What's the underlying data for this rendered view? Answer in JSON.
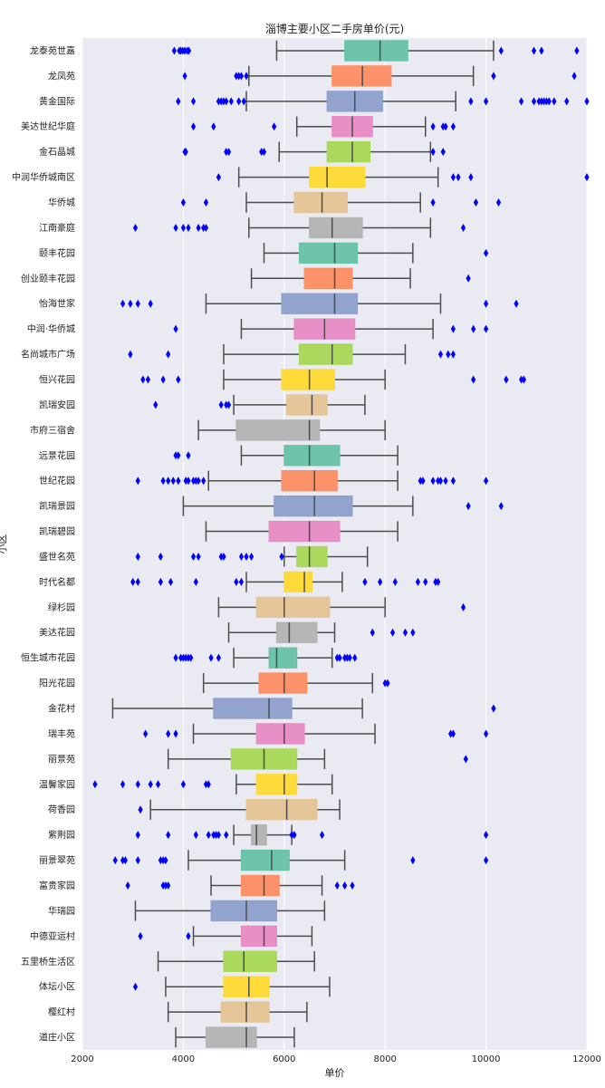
{
  "chart_data": {
    "type": "boxplot",
    "orientation": "horizontal",
    "title": "淄博主要小区二手房单价(元)",
    "xlabel": "单价",
    "ylabel": "小区",
    "xlim": [
      2000,
      12000
    ],
    "xticks": [
      2000,
      4000,
      6000,
      8000,
      10000,
      12000
    ],
    "grid": true,
    "categories": [
      {
        "name": "龙泰苑世嘉",
        "whisker_low": 5850,
        "q1": 7200,
        "median": 7900,
        "q3": 8450,
        "whisker_high": 10150,
        "outliers": [
          3820,
          3920,
          3950,
          3990,
          4030,
          4080,
          4110,
          10300,
          10950,
          11100,
          11800
        ]
      },
      {
        "name": "龙凤苑",
        "whisker_low": 5300,
        "q1": 6950,
        "median": 7550,
        "q3": 8120,
        "whisker_high": 9750,
        "outliers": [
          4030,
          5050,
          5100,
          5150,
          5250,
          10150,
          11750
        ]
      },
      {
        "name": "黄金国际",
        "whisker_low": 5250,
        "q1": 6850,
        "median": 7400,
        "q3": 7950,
        "whisker_high": 9400,
        "outliers": [
          3900,
          4200,
          4700,
          4750,
          4800,
          4850,
          4950,
          5100,
          5200,
          9700,
          10000,
          10700,
          10950,
          11050,
          11100,
          11150,
          11200,
          11250,
          11350,
          11600,
          12000
        ]
      },
      {
        "name": "美达世纪华庭",
        "whisker_low": 6250,
        "q1": 6950,
        "median": 7350,
        "q3": 7750,
        "whisker_high": 8800,
        "outliers": [
          4200,
          4600,
          5800,
          8950,
          9150,
          9200,
          9350
        ]
      },
      {
        "name": "金石晶城",
        "whisker_low": 5900,
        "q1": 6850,
        "median": 7350,
        "q3": 7700,
        "whisker_high": 8900,
        "outliers": [
          4030,
          4050,
          4850,
          4900,
          5550,
          5600,
          8950,
          9150
        ]
      },
      {
        "name": "中润华侨城南区",
        "whisker_low": 5100,
        "q1": 6500,
        "median": 6850,
        "q3": 7600,
        "whisker_high": 9050,
        "outliers": [
          4700,
          9350,
          9450,
          9700,
          12000
        ]
      },
      {
        "name": "华侨城",
        "whisker_low": 5250,
        "q1": 6200,
        "median": 6750,
        "q3": 7250,
        "whisker_high": 8700,
        "outliers": [
          4000,
          4450,
          8950,
          9800,
          10250
        ]
      },
      {
        "name": "江南豪庭",
        "whisker_low": 5300,
        "q1": 6500,
        "median": 6950,
        "q3": 7550,
        "whisker_high": 8900,
        "outliers": [
          3050,
          3850,
          4000,
          4100,
          4300,
          4400,
          4450,
          9550
        ]
      },
      {
        "name": "颐丰花园",
        "whisker_low": 5600,
        "q1": 6300,
        "median": 7000,
        "q3": 7450,
        "whisker_high": 8550,
        "outliers": [
          10000
        ]
      },
      {
        "name": "创业颐丰花园",
        "whisker_low": 5350,
        "q1": 6400,
        "median": 7000,
        "q3": 7350,
        "whisker_high": 8500,
        "outliers": [
          9650
        ]
      },
      {
        "name": "怡海世家",
        "whisker_low": 4450,
        "q1": 5950,
        "median": 7000,
        "q3": 7450,
        "whisker_high": 9100,
        "outliers": [
          2800,
          2950,
          3100,
          3350,
          10000,
          10600
        ]
      },
      {
        "name": "中润·华侨城",
        "whisker_low": 5150,
        "q1": 6200,
        "median": 6800,
        "q3": 7400,
        "whisker_high": 8950,
        "outliers": [
          3850,
          9350,
          9750,
          10000
        ]
      },
      {
        "name": "名尚城市广场",
        "whisker_low": 4800,
        "q1": 6300,
        "median": 6950,
        "q3": 7350,
        "whisker_high": 8400,
        "outliers": [
          2950,
          3700,
          9100,
          9250,
          9350
        ]
      },
      {
        "name": "恒兴花园",
        "whisker_low": 4800,
        "q1": 5950,
        "median": 6500,
        "q3": 7000,
        "whisker_high": 8000,
        "outliers": [
          3200,
          3300,
          3600,
          3900,
          9750,
          10400,
          10700,
          10750
        ]
      },
      {
        "name": "凯瑞安园",
        "whisker_low": 5000,
        "q1": 6050,
        "median": 6550,
        "q3": 6850,
        "whisker_high": 7600,
        "outliers": [
          3450,
          4750,
          4850,
          4900
        ]
      },
      {
        "name": "市府三宿舍",
        "whisker_low": 4300,
        "q1": 5050,
        "median": 6500,
        "q3": 6700,
        "whisker_high": 8000,
        "outliers": []
      },
      {
        "name": "远景花园",
        "whisker_low": 5150,
        "q1": 6000,
        "median": 6500,
        "q3": 7100,
        "whisker_high": 8250,
        "outliers": [
          3850,
          3900,
          4100
        ]
      },
      {
        "name": "世纪花园",
        "whisker_low": 4500,
        "q1": 5950,
        "median": 6600,
        "q3": 7050,
        "whisker_high": 8250,
        "outliers": [
          3100,
          3600,
          3700,
          3800,
          3900,
          4050,
          4100,
          4200,
          4250,
          4300,
          4400,
          8700,
          8750,
          8950,
          9050,
          9100,
          9200,
          9350,
          10000
        ]
      },
      {
        "name": "凯瑞景园",
        "whisker_low": 4000,
        "q1": 5800,
        "median": 6600,
        "q3": 7350,
        "whisker_high": 8550,
        "outliers": [
          9650,
          10300
        ]
      },
      {
        "name": "凯瑞碧园",
        "whisker_low": 4450,
        "q1": 5700,
        "median": 6500,
        "q3": 7100,
        "whisker_high": 8250,
        "outliers": []
      },
      {
        "name": "盛世名苑",
        "whisker_low": 6000,
        "q1": 6250,
        "median": 6500,
        "q3": 6850,
        "whisker_high": 7650,
        "outliers": [
          3100,
          3550,
          4200,
          4300,
          4750,
          4800,
          5150,
          5250,
          5350,
          5950
        ]
      },
      {
        "name": "时代名都",
        "whisker_low": 5250,
        "q1": 6000,
        "median": 6400,
        "q3": 6550,
        "whisker_high": 7150,
        "outliers": [
          3000,
          3100,
          3550,
          3750,
          4250,
          5050,
          5150,
          7600,
          7900,
          8200,
          8650,
          8800,
          9000,
          9050
        ]
      },
      {
        "name": "绿杉园",
        "whisker_low": 4700,
        "q1": 5450,
        "median": 6000,
        "q3": 6900,
        "whisker_high": 8000,
        "outliers": [
          9550
        ]
      },
      {
        "name": "美达花园",
        "whisker_low": 4900,
        "q1": 5850,
        "median": 6100,
        "q3": 6650,
        "whisker_high": 7000,
        "outliers": [
          7750,
          8150,
          8400,
          8550
        ]
      },
      {
        "name": "恒生城市花园",
        "whisker_low": 5000,
        "q1": 5700,
        "median": 5850,
        "q3": 6250,
        "whisker_high": 6950,
        "outliers": [
          3850,
          3950,
          4000,
          4050,
          4100,
          4150,
          4550,
          4700,
          7050,
          7100,
          7200,
          7250,
          7300,
          7400
        ]
      },
      {
        "name": "阳光花园",
        "whisker_low": 4400,
        "q1": 5500,
        "median": 6000,
        "q3": 6450,
        "whisker_high": 7750,
        "outliers": [
          8000,
          8050
        ]
      },
      {
        "name": "金花村",
        "whisker_low": 2600,
        "q1": 4600,
        "median": 5700,
        "q3": 6150,
        "whisker_high": 7550,
        "outliers": [
          10150
        ]
      },
      {
        "name": "瑞丰苑",
        "whisker_low": 4200,
        "q1": 5450,
        "median": 6000,
        "q3": 6400,
        "whisker_high": 7800,
        "outliers": [
          3250,
          3700,
          3850,
          9300,
          9350,
          10000
        ]
      },
      {
        "name": "丽景苑",
        "whisker_low": 3700,
        "q1": 4950,
        "median": 5600,
        "q3": 6250,
        "whisker_high": 6800,
        "outliers": [
          9600
        ]
      },
      {
        "name": "温馨家园",
        "whisker_low": 5050,
        "q1": 5450,
        "median": 6000,
        "q3": 6250,
        "whisker_high": 6950,
        "outliers": [
          2250,
          2800,
          3100,
          3350,
          3500,
          4000,
          4450,
          4500
        ]
      },
      {
        "name": "荷香园",
        "whisker_low": 3350,
        "q1": 5250,
        "median": 6050,
        "q3": 6650,
        "whisker_high": 7100,
        "outliers": [
          3150
        ]
      },
      {
        "name": "紫荆园",
        "whisker_low": 5000,
        "q1": 5350,
        "median": 5450,
        "q3": 5650,
        "whisker_high": 6150,
        "outliers": [
          3100,
          3700,
          4250,
          4500,
          4600,
          4650,
          4700,
          4850,
          6150,
          6200,
          6750,
          10000
        ]
      },
      {
        "name": "丽景翠苑",
        "whisker_low": 4100,
        "q1": 5150,
        "median": 5750,
        "q3": 6100,
        "whisker_high": 7200,
        "outliers": [
          2650,
          2800,
          2850,
          3100,
          3550,
          3600,
          3650,
          8550,
          10000
        ]
      },
      {
        "name": "富贵家园",
        "whisker_low": 4550,
        "q1": 5150,
        "median": 5600,
        "q3": 5900,
        "whisker_high": 6750,
        "outliers": [
          2900,
          3600,
          3650,
          3700,
          7050,
          7200,
          7350
        ]
      },
      {
        "name": "华瑞园",
        "whisker_low": 3050,
        "q1": 4550,
        "median": 5250,
        "q3": 5850,
        "whisker_high": 6800,
        "outliers": []
      },
      {
        "name": "中德亚运村",
        "whisker_low": 4200,
        "q1": 5150,
        "median": 5600,
        "q3": 5850,
        "whisker_high": 6550,
        "outliers": [
          3150,
          4100
        ]
      },
      {
        "name": "五里桥生活区",
        "whisker_low": 3500,
        "q1": 4800,
        "median": 5200,
        "q3": 5850,
        "whisker_high": 6600,
        "outliers": []
      },
      {
        "name": "体坛小区",
        "whisker_low": 3650,
        "q1": 4800,
        "median": 5300,
        "q3": 5700,
        "whisker_high": 6900,
        "outliers": [
          3050
        ]
      },
      {
        "name": "樱红村",
        "whisker_low": 3700,
        "q1": 4750,
        "median": 5250,
        "q3": 5700,
        "whisker_high": 6450,
        "outliers": []
      },
      {
        "name": "道庄小区",
        "whisker_low": 3850,
        "q1": 4450,
        "median": 5250,
        "q3": 5450,
        "whisker_high": 6200,
        "outliers": []
      }
    ],
    "palette": [
      "#66c2a5",
      "#fc8d62",
      "#8da0cb",
      "#e78ac3",
      "#a6d854",
      "#ffd92f",
      "#e5c494",
      "#b3b3b3"
    ],
    "box_alpha": 0.95,
    "colors": {
      "background": "#eaeaf2",
      "grid": "#ffffff",
      "outlier": "#0000ff",
      "line": "#4d4d4d"
    }
  }
}
